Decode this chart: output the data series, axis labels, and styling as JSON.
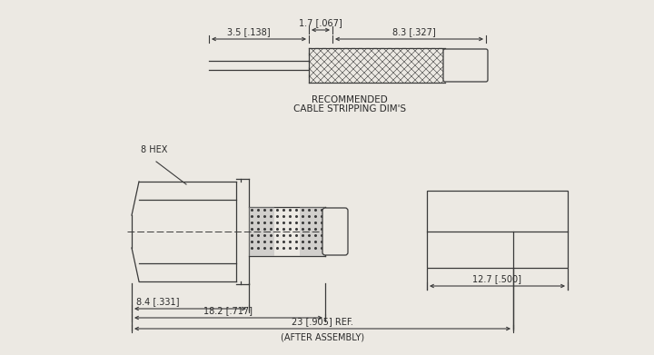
{
  "bg_color": "#ece9e3",
  "line_color": "#3a3a3a",
  "text_color": "#2a2a2a",
  "font_size": 7.0,
  "title_top": "RECOMMENDED",
  "title_bot": "CABLE STRIPPING DIM'S",
  "label_8hex": "8 HEX",
  "label_35": "3.5 [.138]",
  "label_17": "1.7 [.067]",
  "label_83": "8.3 [.327]",
  "label_84": "8.4 [.331]",
  "label_182": "18.2 [.717]",
  "label_23": "23 [.905] REF.",
  "label_after": "(AFTER ASSEMBLY)",
  "label_127": "12.7 [.500]"
}
